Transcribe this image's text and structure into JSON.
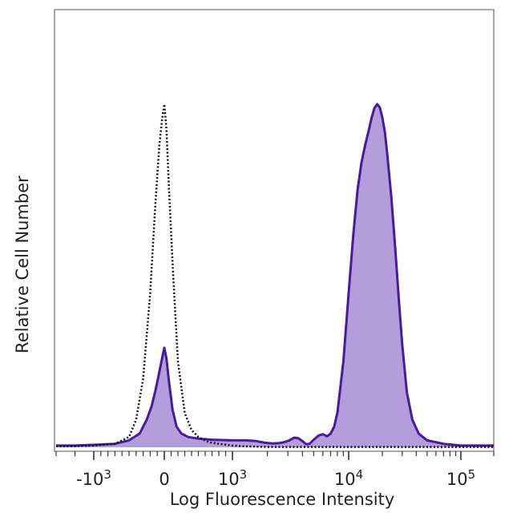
{
  "chart_data": {
    "type": "area",
    "xlabel": "Log Fluorescence Intensity",
    "ylabel": "Relative Cell Number",
    "x_scale": "biexponential",
    "xlim": [
      -3000,
      200000
    ],
    "ylim": [
      0,
      100
    ],
    "grid": false,
    "x_ticks": [
      {
        "value": -1000,
        "base": "-10",
        "exp": "3"
      },
      {
        "value": 0,
        "base": "0",
        "exp": ""
      },
      {
        "value": 1000,
        "base": "10",
        "exp": "3"
      },
      {
        "value": 10000,
        "base": "10",
        "exp": "4"
      },
      {
        "value": 100000,
        "base": "10",
        "exp": "5"
      }
    ],
    "series": [
      {
        "style": "filled",
        "fill_color": "#b39ddb",
        "line_color": "#4a1a9c",
        "x": [
          -3000,
          -2500,
          -2000,
          -1500,
          -1000,
          -700,
          -500,
          -350,
          -250,
          -180,
          -120,
          -60,
          -20,
          0,
          30,
          70,
          120,
          180,
          250,
          350,
          500,
          700,
          1000,
          1300,
          1600,
          1900,
          2200,
          2500,
          2800,
          3100,
          3400,
          3700,
          4000,
          4300,
          4600,
          5000,
          5500,
          6000,
          6500,
          7000,
          7500,
          8000,
          9000,
          10000,
          11000,
          12000,
          13000,
          14000,
          15000,
          16000,
          17000,
          18000,
          19000,
          20000,
          21000,
          22000,
          24000,
          26000,
          28000,
          30000,
          33000,
          37000,
          42000,
          50000,
          70000,
          100000,
          200000
        ],
        "y": [
          0.5,
          0.5,
          0.5,
          0.6,
          0.7,
          1,
          2,
          4,
          8,
          12,
          17,
          23,
          27,
          29,
          26,
          19,
          11,
          6,
          4,
          3,
          2.5,
          2.2,
          2,
          2,
          1.8,
          1.3,
          1.1,
          1.2,
          1.5,
          2,
          2.8,
          2.6,
          1.8,
          0.9,
          1,
          2.2,
          3.4,
          3.8,
          3.2,
          4,
          6,
          10,
          25,
          45,
          62,
          75,
          83,
          88,
          92,
          96,
          99,
          100,
          99,
          96,
          92,
          86,
          73,
          58,
          43,
          30,
          16,
          8,
          4,
          2,
          1,
          0.5,
          0.5
        ]
      },
      {
        "style": "dotted",
        "line_color": "#111111",
        "x": [
          -3000,
          -2500,
          -2000,
          -1500,
          -1000,
          -700,
          -500,
          -400,
          -300,
          -200,
          -130,
          -70,
          -30,
          0,
          30,
          70,
          130,
          200,
          300,
          400,
          500,
          650,
          800,
          1000,
          1200,
          1500,
          2000,
          200000
        ],
        "y": [
          0.3,
          0.3,
          0.3,
          0.4,
          0.5,
          1,
          3,
          8,
          20,
          45,
          70,
          88,
          96,
          100,
          93,
          75,
          50,
          25,
          10,
          5,
          3,
          1.5,
          1,
          0.5,
          0.3,
          0.2,
          0.1,
          0.1
        ]
      }
    ]
  }
}
